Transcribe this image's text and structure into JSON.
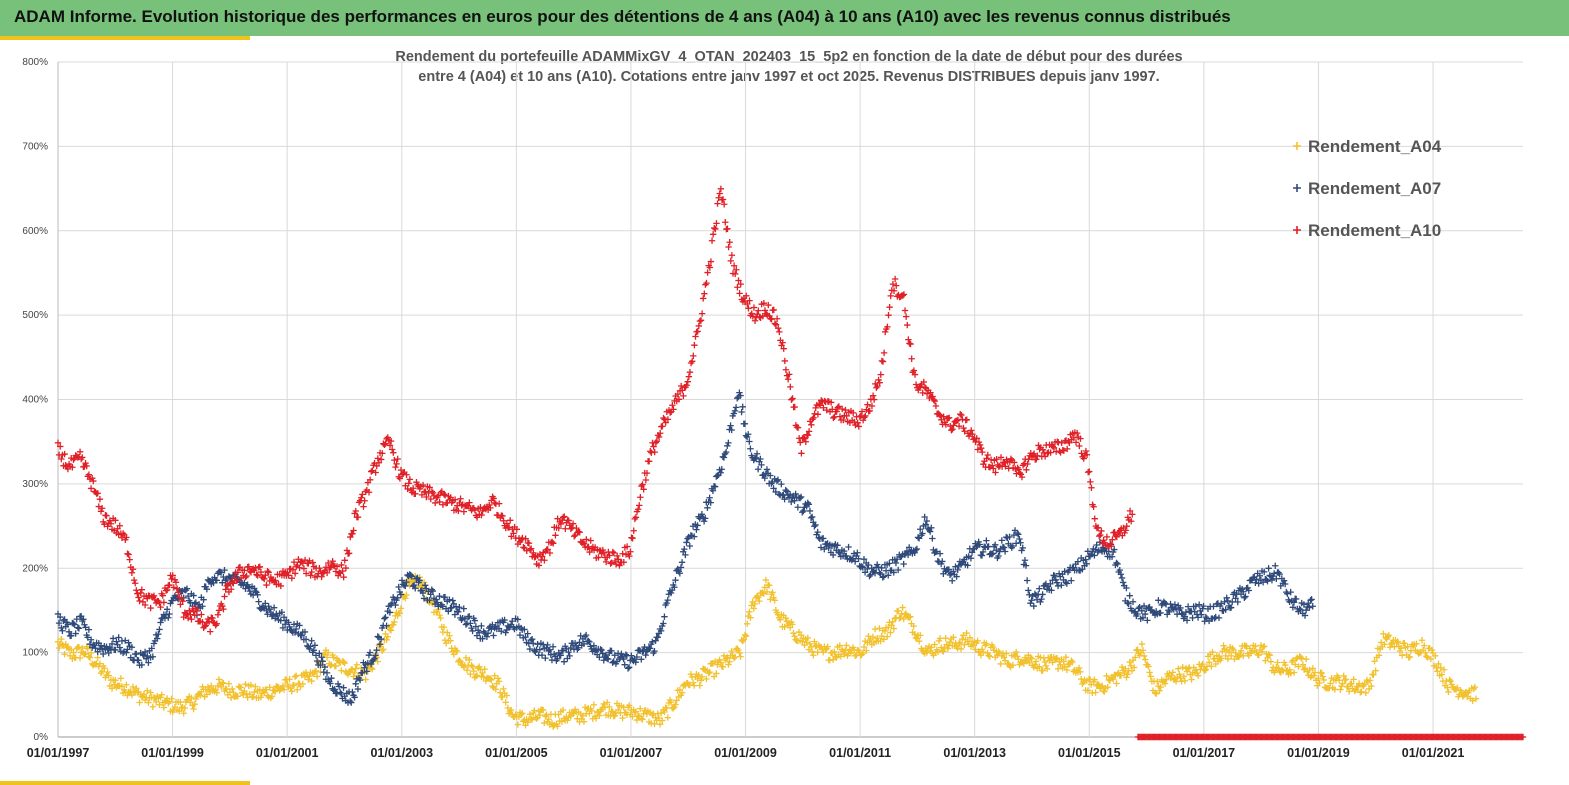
{
  "header": {
    "title": "ADAM Informe. Evolution historique des performances en euros pour des détentions de 4 ans (A04) à 10 ans (A10) avec les revenus connus distribués"
  },
  "colors": {
    "header_bg": "#77c17a",
    "accent": "#f1c21b",
    "A04": "#f2c12e",
    "A07": "#2f4a7a",
    "A10": "#e02027"
  },
  "chart_data": {
    "type": "scatter",
    "title": "Rendement du portefeuille ADAMMixGV_4_OTAN_202403_15_5p2  en fonction de la date de début pour des durées",
    "subtitle": "entre 4 (A04) et 10 ans (A10). Cotations  entre janv 1997 et oct 2025. Revenus DISTRIBUES depuis janv 1997.",
    "ylabel": "",
    "xlabel": "",
    "ylim": [
      0,
      800
    ],
    "xlim": [
      1997.0,
      2022.57
    ],
    "y_ticks": [
      "0%",
      "100%",
      "200%",
      "300%",
      "400%",
      "500%",
      "600%",
      "700%",
      "800%"
    ],
    "x_ticks": [
      "01/01/1997",
      "01/01/1999",
      "01/01/2001",
      "01/01/2003",
      "01/01/2005",
      "01/01/2007",
      "01/01/2009",
      "01/01/2011",
      "01/01/2013",
      "01/01/2015",
      "01/01/2017",
      "01/01/2019",
      "01/01/2021"
    ],
    "grid": true,
    "legend_position": "top-right",
    "marker": "+",
    "series": [
      {
        "name": "Rendement_A04",
        "color": "#f2c12e",
        "x_start": 1997.0,
        "x_end": 2021.75,
        "values": [
          110,
          98,
          102,
          85,
          65,
          60,
          50,
          45,
          40,
          35,
          40,
          55,
          60,
          55,
          55,
          50,
          55,
          60,
          65,
          70,
          95,
          85,
          80,
          75,
          100,
          130,
          175,
          185,
          160,
          120,
          95,
          80,
          75,
          60,
          25,
          20,
          25,
          20,
          25,
          25,
          30,
          35,
          30,
          30,
          25,
          20,
          40,
          65,
          70,
          80,
          90,
          100,
          160,
          180,
          140,
          125,
          110,
          100,
          100,
          105,
          100,
          120,
          125,
          150,
          130,
          100,
          110,
          110,
          115,
          105,
          100,
          90,
          95,
          90,
          85,
          90,
          80,
          60,
          60,
          70,
          80,
          105,
          55,
          70,
          75,
          75,
          90,
          100,
          100,
          100,
          105,
          80,
          80,
          90,
          70,
          65,
          65,
          60,
          60,
          115,
          110,
          100,
          110,
          90,
          60,
          55,
          50
        ]
      },
      {
        "name": "Rendement_A07",
        "color": "#2f4a7a",
        "x_start": 1997.0,
        "x_end": 2018.9,
        "values": [
          140,
          125,
          135,
          110,
          105,
          110,
          105,
          90,
          100,
          140,
          165,
          170,
          150,
          190,
          190,
          185,
          180,
          165,
          150,
          140,
          130,
          120,
          100,
          70,
          55,
          45,
          80,
          100,
          140,
          170,
          190,
          175,
          165,
          160,
          150,
          140,
          125,
          125,
          130,
          135,
          115,
          105,
          100,
          95,
          110,
          115,
          105,
          95,
          90,
          90,
          100,
          110,
          160,
          200,
          240,
          260,
          300,
          340,
          410,
          340,
          320,
          300,
          290,
          280,
          270,
          230,
          225,
          220,
          215,
          200,
          195,
          200,
          210,
          220,
          260,
          215,
          190,
          200,
          220,
          225,
          220,
          230,
          240,
          160,
          170,
          185,
          190,
          200,
          215,
          225,
          220,
          170,
          150,
          145,
          155,
          150,
          145,
          150,
          145,
          150,
          160,
          170,
          185,
          190,
          195,
          165,
          150,
          155
        ]
      },
      {
        "name": "Rendement_A10",
        "color": "#e02027",
        "x_start": 1997.0,
        "x_end": 2015.75,
        "values": [
          340,
          320,
          330,
          300,
          260,
          250,
          230,
          170,
          160,
          160,
          190,
          150,
          145,
          130,
          140,
          180,
          195,
          200,
          190,
          185,
          190,
          205,
          200,
          195,
          205,
          195,
          260,
          290,
          330,
          350,
          310,
          295,
          290,
          285,
          280,
          275,
          270,
          265,
          280,
          260,
          240,
          230,
          210,
          225,
          260,
          245,
          230,
          220,
          215,
          210,
          220,
          290,
          340,
          370,
          395,
          420,
          480,
          560,
          650,
          560,
          520,
          500,
          510,
          490,
          420,
          340,
          380,
          395,
          385,
          380,
          375,
          390,
          430,
          540,
          520,
          420,
          410,
          385,
          370,
          375,
          360,
          330,
          320,
          330,
          310,
          330,
          340,
          340,
          345,
          360,
          330,
          240,
          230,
          240,
          265
        ]
      }
    ],
    "footer_band": {
      "color": "#e02027",
      "x_start": 2015.85,
      "x_end": 2022.57,
      "value": 0
    }
  },
  "legend": [
    {
      "label": "Rendement_A04"
    },
    {
      "label": "Rendement_A07"
    },
    {
      "label": "Rendement_A10"
    }
  ]
}
